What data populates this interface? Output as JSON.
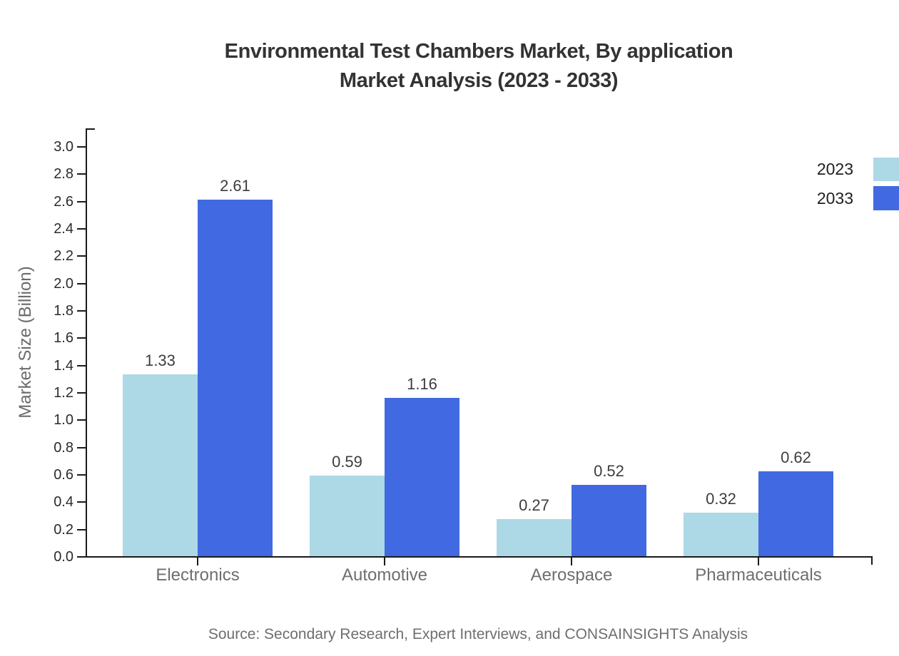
{
  "title": {
    "line1": "Environmental Test Chambers Market, By application",
    "line2": "Market Analysis (2023 - 2033)"
  },
  "source": {
    "text": "Source: Secondary Research, Expert Interviews, and CONSAINSIGHTS Analysis"
  },
  "chart_data": {
    "type": "bar",
    "title": "Environmental Test Chambers Market, By application Market Analysis (2023 - 2033)",
    "categories": [
      "Electronics",
      "Automotive",
      "Aerospace",
      "Pharmaceuticals"
    ],
    "series": [
      {
        "name": "2023",
        "color": "#ADD8E6",
        "values": [
          1.33,
          0.59,
          0.27,
          0.32
        ]
      },
      {
        "name": "2033",
        "color": "#4169E1",
        "values": [
          2.61,
          1.16,
          0.52,
          0.62
        ]
      }
    ],
    "xlabel": "",
    "ylabel": "Market Size (Billion)",
    "ylim": [
      0.0,
      3.0
    ],
    "ytick_step": 0.2,
    "ytick_decimals": 1,
    "grid": false,
    "legend_position": "upper right outside",
    "value_labels": true
  },
  "colors": {
    "axis": "#1a1a1a",
    "title_text": "#333333",
    "tick_text": "#2b2b2b",
    "category_text": "#6e6e6e",
    "value_text": "#3d3d3d",
    "series_2023": "#ADD8E6",
    "series_2033": "#4169E1"
  }
}
